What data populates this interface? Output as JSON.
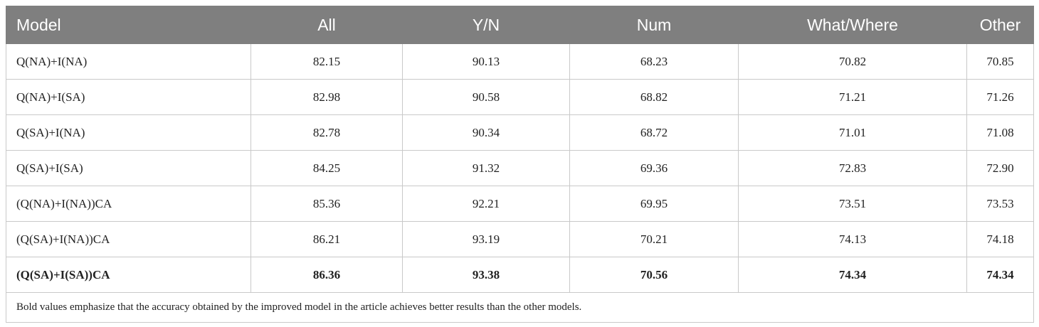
{
  "table": {
    "header": [
      "Model",
      "All",
      "Y/N",
      "Num",
      "What/Where",
      "Other"
    ],
    "rows": [
      [
        "Q(NA)+I(NA)",
        "82.15",
        "90.13",
        "68.23",
        "70.82",
        "70.85"
      ],
      [
        "Q(NA)+I(SA)",
        "82.98",
        "90.58",
        "68.82",
        "71.21",
        "71.26"
      ],
      [
        "Q(SA)+I(NA)",
        "82.78",
        "90.34",
        "68.72",
        "71.01",
        "71.08"
      ],
      [
        "Q(SA)+I(SA)",
        "84.25",
        "91.32",
        "69.36",
        "72.83",
        "72.90"
      ],
      [
        "(Q(NA)+I(NA))CA",
        "85.36",
        "92.21",
        "69.95",
        "73.51",
        "73.53"
      ],
      [
        "(Q(SA)+I(NA))CA",
        "86.21",
        "93.19",
        "70.21",
        "74.13",
        "74.18"
      ],
      [
        "(Q(SA)+I(SA))CA",
        "86.36",
        "93.38",
        "70.56",
        "74.34",
        "74.34"
      ]
    ],
    "footnote": "Bold values emphasize that the accuracy obtained by the improved model in the article achieves better results than the other models."
  }
}
